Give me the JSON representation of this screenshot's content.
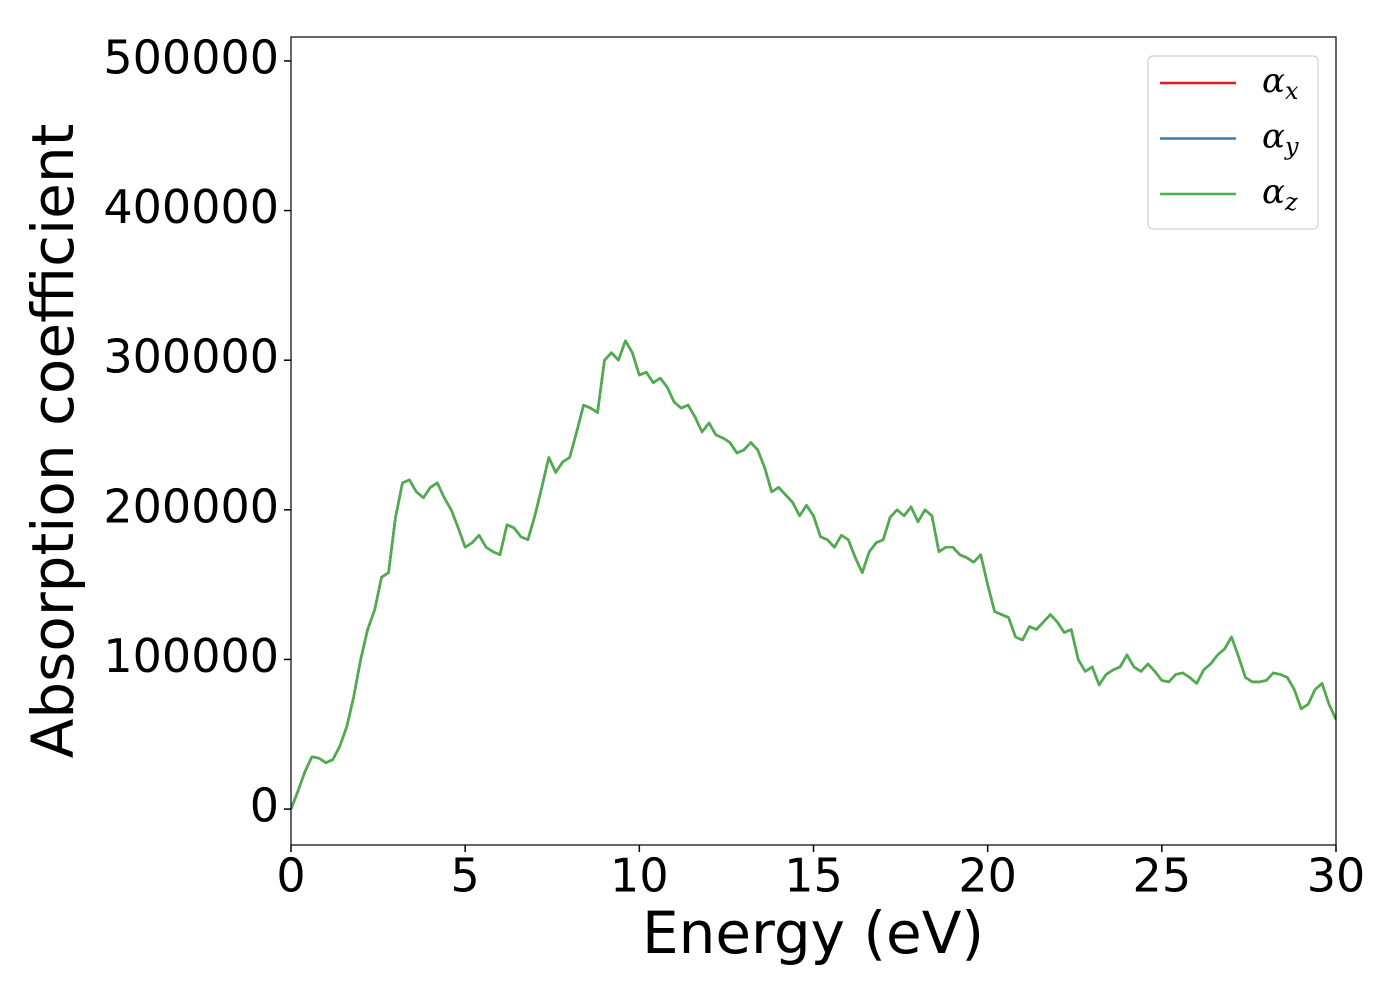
{
  "chart_data": {
    "type": "line",
    "x_label": "Energy (eV)",
    "y_label": "Absorption coefficient",
    "xlim": [
      0,
      30
    ],
    "xticks": [
      0,
      5,
      10,
      15,
      20,
      25,
      30
    ],
    "ylim": [
      -24000,
      516000
    ],
    "yticks": [
      0,
      100000,
      200000,
      300000,
      400000,
      500000
    ],
    "legend": "upper right",
    "grid": false,
    "x": [
      0,
      0.2,
      0.4,
      0.6,
      0.8,
      1,
      1.2,
      1.4,
      1.6,
      1.8,
      2,
      2.2,
      2.4,
      2.6,
      2.8,
      3,
      3.2,
      3.4,
      3.6,
      3.8,
      4,
      4.2,
      4.4,
      4.6,
      4.8,
      5,
      5.2,
      5.4,
      5.6,
      5.8,
      6,
      6.2,
      6.4,
      6.6,
      6.8,
      7,
      7.2,
      7.4,
      7.6,
      7.8,
      8,
      8.2,
      8.4,
      8.6,
      8.8,
      9,
      9.2,
      9.4,
      9.6,
      9.8,
      10,
      10.2,
      10.4,
      10.6,
      10.8,
      11,
      11.2,
      11.4,
      11.6,
      11.8,
      12,
      12.2,
      12.4,
      12.6,
      12.8,
      13,
      13.2,
      13.4,
      13.6,
      13.8,
      14,
      14.2,
      14.4,
      14.6,
      14.8,
      15,
      15.2,
      15.4,
      15.6,
      15.8,
      16,
      16.2,
      16.4,
      16.6,
      16.8,
      17,
      17.2,
      17.4,
      17.6,
      17.8,
      18,
      18.2,
      18.4,
      18.6,
      18.8,
      19,
      19.2,
      19.4,
      19.6,
      19.8,
      20,
      20.2,
      20.4,
      20.6,
      20.8,
      21,
      21.2,
      21.4,
      21.6,
      21.8,
      22,
      22.2,
      22.4,
      22.6,
      22.8,
      23,
      23.2,
      23.4,
      23.6,
      23.8,
      24,
      24.2,
      24.4,
      24.6,
      24.8,
      25,
      25.2,
      25.4,
      25.6,
      25.8,
      26,
      26.2,
      26.4,
      26.6,
      26.8,
      27,
      27.2,
      27.4,
      27.6,
      27.8,
      28,
      28.2,
      28.4,
      28.6,
      28.8,
      29,
      29.2,
      29.4,
      29.6,
      29.8,
      30
    ],
    "series": [
      {
        "name": "αx",
        "color": "#e41a1c",
        "values": [
          0,
          12000,
          25000,
          35000,
          34000,
          31000,
          33000,
          42000,
          55000,
          75000,
          100000,
          120000,
          133000,
          155000,
          158000,
          195000,
          218000,
          220000,
          212000,
          208000,
          215000,
          218000,
          208000,
          200000,
          188000,
          175000,
          178000,
          183000,
          175000,
          172000,
          170000,
          190000,
          188000,
          182000,
          180000,
          196000,
          215000,
          235000,
          225000,
          232000,
          235000,
          252000,
          270000,
          268000,
          265000,
          300000,
          305000,
          300000,
          313000,
          305000,
          290000,
          292000,
          285000,
          288000,
          282000,
          272000,
          268000,
          270000,
          262000,
          252000,
          258000,
          250000,
          248000,
          245000,
          238000,
          240000,
          245000,
          240000,
          228000,
          212000,
          215000,
          210000,
          205000,
          196000,
          203000,
          196000,
          182000,
          180000,
          175000,
          183000,
          180000,
          168000,
          158000,
          172000,
          178000,
          180000,
          195000,
          200000,
          196000,
          202000,
          192000,
          200000,
          196000,
          172000,
          175000,
          175000,
          170000,
          168000,
          165000,
          170000,
          150000,
          132000,
          130000,
          128000,
          115000,
          113000,
          122000,
          120000,
          125000,
          130000,
          125000,
          118000,
          120000,
          100000,
          92000,
          95000,
          83000,
          90000,
          93000,
          95000,
          103000,
          95000,
          92000,
          97000,
          92000,
          86000,
          85000,
          90000,
          91000,
          88000,
          84000,
          93000,
          97000,
          103000,
          107000,
          115000,
          102000,
          88000,
          85000,
          85000,
          86000,
          91000,
          90000,
          88000,
          80000,
          67000,
          70000,
          80000,
          84000,
          70000,
          60000
        ]
      },
      {
        "name": "αy",
        "color": "#377eb8",
        "values": [
          0,
          12000,
          25000,
          35000,
          34000,
          31000,
          33000,
          42000,
          55000,
          75000,
          100000,
          120000,
          133000,
          155000,
          158000,
          195000,
          218000,
          220000,
          212000,
          208000,
          215000,
          218000,
          208000,
          200000,
          188000,
          175000,
          178000,
          183000,
          175000,
          172000,
          170000,
          190000,
          188000,
          182000,
          180000,
          196000,
          215000,
          235000,
          225000,
          232000,
          235000,
          252000,
          270000,
          268000,
          265000,
          300000,
          305000,
          300000,
          313000,
          305000,
          290000,
          292000,
          285000,
          288000,
          282000,
          272000,
          268000,
          270000,
          262000,
          252000,
          258000,
          250000,
          248000,
          245000,
          238000,
          240000,
          245000,
          240000,
          228000,
          212000,
          215000,
          210000,
          205000,
          196000,
          203000,
          196000,
          182000,
          180000,
          175000,
          183000,
          180000,
          168000,
          158000,
          172000,
          178000,
          180000,
          195000,
          200000,
          196000,
          202000,
          192000,
          200000,
          196000,
          172000,
          175000,
          175000,
          170000,
          168000,
          165000,
          170000,
          150000,
          132000,
          130000,
          128000,
          115000,
          113000,
          122000,
          120000,
          125000,
          130000,
          125000,
          118000,
          120000,
          100000,
          92000,
          95000,
          83000,
          90000,
          93000,
          95000,
          103000,
          95000,
          92000,
          97000,
          92000,
          86000,
          85000,
          90000,
          91000,
          88000,
          84000,
          93000,
          97000,
          103000,
          107000,
          115000,
          102000,
          88000,
          85000,
          85000,
          86000,
          91000,
          90000,
          88000,
          80000,
          67000,
          70000,
          80000,
          84000,
          70000,
          60000
        ]
      },
      {
        "name": "αz",
        "color": "#4daf4a",
        "values": [
          0,
          12000,
          25000,
          35000,
          34000,
          31000,
          33000,
          42000,
          55000,
          75000,
          100000,
          120000,
          133000,
          155000,
          158000,
          195000,
          218000,
          220000,
          212000,
          208000,
          215000,
          218000,
          208000,
          200000,
          188000,
          175000,
          178000,
          183000,
          175000,
          172000,
          170000,
          190000,
          188000,
          182000,
          180000,
          196000,
          215000,
          235000,
          225000,
          232000,
          235000,
          252000,
          270000,
          268000,
          265000,
          300000,
          305000,
          300000,
          313000,
          305000,
          290000,
          292000,
          285000,
          288000,
          282000,
          272000,
          268000,
          270000,
          262000,
          252000,
          258000,
          250000,
          248000,
          245000,
          238000,
          240000,
          245000,
          240000,
          228000,
          212000,
          215000,
          210000,
          205000,
          196000,
          203000,
          196000,
          182000,
          180000,
          175000,
          183000,
          180000,
          168000,
          158000,
          172000,
          178000,
          180000,
          195000,
          200000,
          196000,
          202000,
          192000,
          200000,
          196000,
          172000,
          175000,
          175000,
          170000,
          168000,
          165000,
          170000,
          150000,
          132000,
          130000,
          128000,
          115000,
          113000,
          122000,
          120000,
          125000,
          130000,
          125000,
          118000,
          120000,
          100000,
          92000,
          95000,
          83000,
          90000,
          93000,
          95000,
          103000,
          95000,
          92000,
          97000,
          92000,
          86000,
          85000,
          90000,
          91000,
          88000,
          84000,
          93000,
          97000,
          103000,
          107000,
          115000,
          102000,
          88000,
          85000,
          85000,
          86000,
          91000,
          90000,
          88000,
          80000,
          67000,
          70000,
          80000,
          84000,
          70000,
          60000
        ]
      }
    ]
  }
}
